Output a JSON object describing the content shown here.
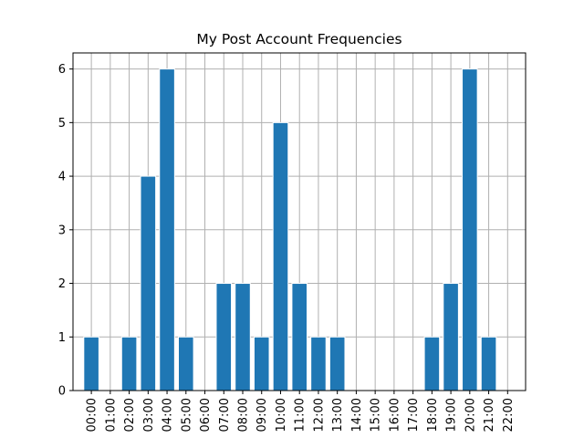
{
  "chart_data": {
    "type": "bar",
    "title": "My Post Account Frequencies",
    "xlabel": "",
    "ylabel": "",
    "categories": [
      "00:00",
      "01:00",
      "02:00",
      "03:00",
      "04:00",
      "05:00",
      "06:00",
      "07:00",
      "08:00",
      "09:00",
      "10:00",
      "11:00",
      "12:00",
      "13:00",
      "14:00",
      "15:00",
      "16:00",
      "17:00",
      "18:00",
      "19:00",
      "20:00",
      "21:00",
      "22:00"
    ],
    "values": [
      1,
      0,
      1,
      4,
      6,
      1,
      0,
      2,
      2,
      1,
      5,
      2,
      1,
      1,
      0,
      0,
      0,
      0,
      1,
      2,
      6,
      1,
      0
    ],
    "ylim": [
      0,
      6.3
    ],
    "yticks": [
      0,
      1,
      2,
      3,
      4,
      5,
      6
    ],
    "grid": true,
    "bar_color": "#1f77b4",
    "bar_edge_color": "#ffffff",
    "grid_color": "#b0b0b0"
  }
}
